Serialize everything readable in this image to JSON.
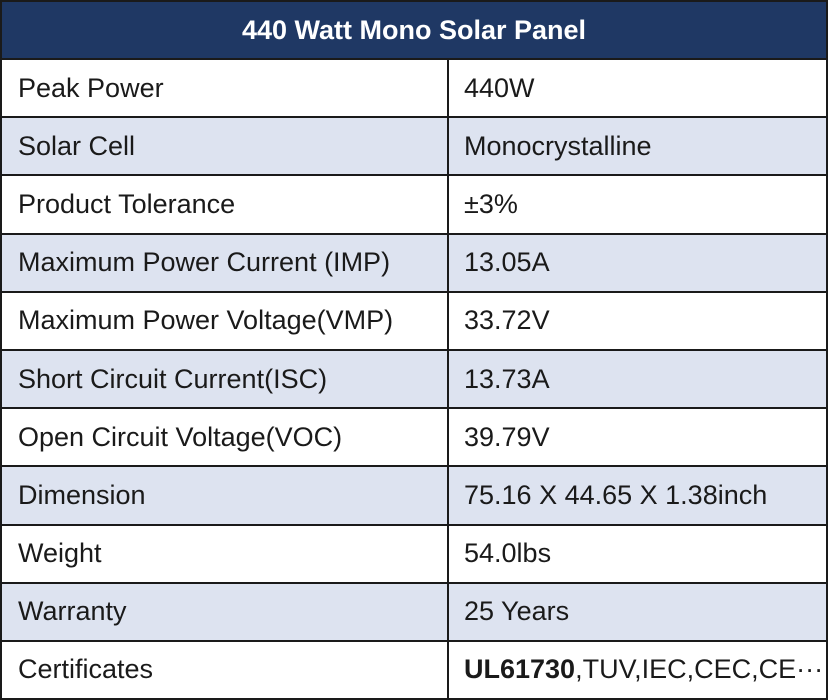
{
  "title": "440 Watt Mono Solar Panel",
  "rows": [
    {
      "label": "Peak Power",
      "value": "440W"
    },
    {
      "label": "Solar Cell",
      "value": "Monocrystalline"
    },
    {
      "label": "Product Tolerance",
      "value": "±3%"
    },
    {
      "label": "Maximum Power Current (IMP)",
      "value": "13.05A"
    },
    {
      "label": "Maximum Power Voltage(VMP)",
      "value": "33.72V"
    },
    {
      "label": "Short Circuit Current(ISC)",
      "value": "13.73A"
    },
    {
      "label": "Open Circuit Voltage(VOC)",
      "value": "39.79V"
    },
    {
      "label": "Dimension",
      "value": "75.16 X 44.65 X 1.38inch"
    },
    {
      "label": "Weight",
      "value": "54.0lbs"
    },
    {
      "label": "Warranty",
      "value": "25 Years"
    },
    {
      "label": "Certificates",
      "value_bold": "UL61730",
      "value_rest": ",TUV,IEC,CEC,CE···"
    }
  ],
  "colors": {
    "header_bg": "#1f3864",
    "alt_row_bg": "#dde3f0",
    "border": "#1a1a1a"
  }
}
